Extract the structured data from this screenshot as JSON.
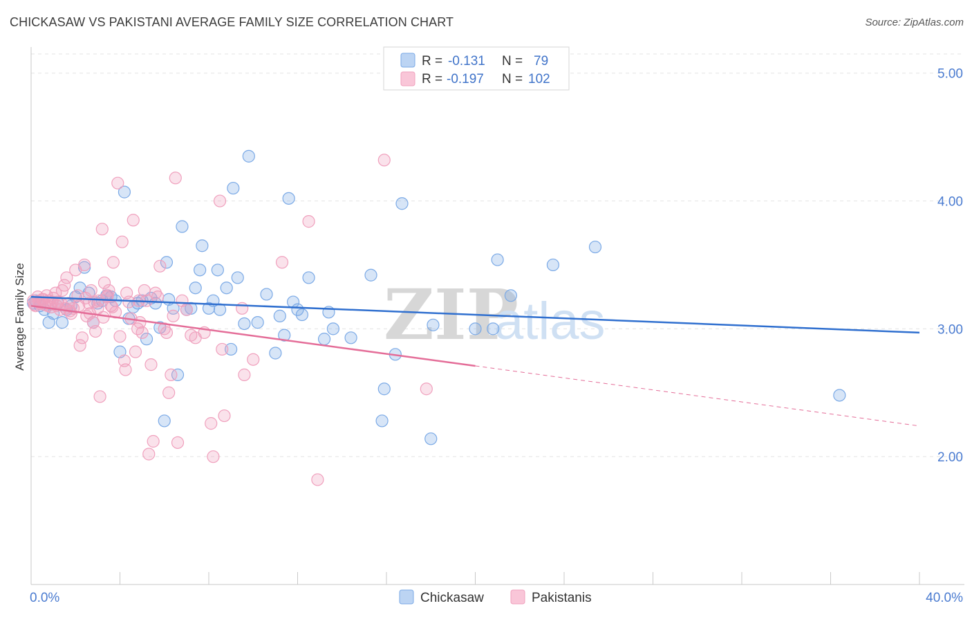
{
  "title": "CHICKASAW VS PAKISTANI AVERAGE FAMILY SIZE CORRELATION CHART",
  "source": "Source: ZipAtlas.com",
  "watermark": {
    "part1": "ZIP",
    "part2": "atlas"
  },
  "legend": {
    "rows": [
      {
        "r_label": "R =",
        "r_value": "-0.131",
        "n_label": "N =",
        "n_value": "79",
        "color": "#7aa9e6"
      },
      {
        "r_label": "R =",
        "r_value": "-0.197",
        "n_label": "N =",
        "n_value": "102",
        "color": "#f0a0bd"
      }
    ]
  },
  "bottom_legend": [
    "Chickasaw",
    "Pakistanis"
  ],
  "chart_data": {
    "type": "scatter",
    "ylabel": "Average Family Size",
    "xlim": [
      0,
      40
    ],
    "ylim": [
      1.0,
      5.15
    ],
    "x_tick_labels": [
      "0.0%",
      "40.0%"
    ],
    "y_ticks": [
      2.0,
      3.0,
      4.0,
      5.0
    ],
    "y_tick_labels": [
      "2.00",
      "3.00",
      "4.00",
      "5.00"
    ],
    "grid": true,
    "series": [
      {
        "name": "Chickasaw",
        "color": "#7aa9e6",
        "line_color": "#2f6fcf",
        "trend": {
          "x0": 0,
          "y0": 3.25,
          "x1": 40,
          "y1": 2.97,
          "dashed_from": 40
        },
        "points": [
          [
            0.2,
            3.22
          ],
          [
            0.4,
            3.18
          ],
          [
            0.6,
            3.15
          ],
          [
            0.8,
            3.05
          ],
          [
            1.0,
            3.12
          ],
          [
            1.2,
            3.2
          ],
          [
            1.4,
            3.05
          ],
          [
            1.6,
            3.15
          ],
          [
            1.8,
            3.18
          ],
          [
            2.0,
            3.25
          ],
          [
            2.2,
            3.32
          ],
          [
            2.4,
            3.48
          ],
          [
            2.6,
            3.28
          ],
          [
            2.8,
            3.05
          ],
          [
            3.0,
            3.2
          ],
          [
            3.2,
            3.22
          ],
          [
            3.4,
            3.26
          ],
          [
            3.6,
            3.25
          ],
          [
            3.8,
            3.22
          ],
          [
            4.0,
            2.82
          ],
          [
            4.2,
            4.07
          ],
          [
            4.4,
            3.08
          ],
          [
            4.6,
            3.17
          ],
          [
            4.8,
            3.2
          ],
          [
            5.0,
            3.22
          ],
          [
            5.2,
            2.92
          ],
          [
            5.4,
            3.24
          ],
          [
            5.6,
            3.2
          ],
          [
            5.8,
            3.01
          ],
          [
            6.0,
            2.28
          ],
          [
            6.1,
            3.52
          ],
          [
            6.2,
            3.23
          ],
          [
            6.4,
            3.16
          ],
          [
            6.6,
            2.64
          ],
          [
            6.8,
            3.8
          ],
          [
            7.0,
            3.15
          ],
          [
            7.2,
            3.16
          ],
          [
            7.4,
            3.32
          ],
          [
            7.6,
            3.46
          ],
          [
            7.7,
            3.65
          ],
          [
            8.0,
            3.16
          ],
          [
            8.2,
            3.22
          ],
          [
            8.4,
            3.46
          ],
          [
            8.5,
            3.15
          ],
          [
            8.8,
            3.32
          ],
          [
            9.0,
            2.84
          ],
          [
            9.1,
            4.1
          ],
          [
            9.3,
            3.4
          ],
          [
            9.6,
            3.04
          ],
          [
            9.8,
            4.35
          ],
          [
            10.2,
            3.05
          ],
          [
            10.6,
            3.27
          ],
          [
            11.0,
            2.81
          ],
          [
            11.2,
            3.1
          ],
          [
            11.4,
            2.95
          ],
          [
            11.6,
            4.02
          ],
          [
            11.8,
            3.21
          ],
          [
            12.0,
            3.15
          ],
          [
            12.2,
            3.11
          ],
          [
            12.5,
            3.4
          ],
          [
            13.2,
            2.92
          ],
          [
            13.4,
            3.13
          ],
          [
            13.6,
            3.0
          ],
          [
            14.4,
            2.93
          ],
          [
            15.3,
            3.42
          ],
          [
            15.8,
            2.28
          ],
          [
            15.9,
            2.53
          ],
          [
            16.4,
            2.8
          ],
          [
            16.7,
            3.98
          ],
          [
            18.0,
            2.14
          ],
          [
            18.1,
            3.03
          ],
          [
            20.0,
            3.0
          ],
          [
            20.8,
            3.0
          ],
          [
            21.0,
            3.54
          ],
          [
            21.6,
            3.26
          ],
          [
            23.5,
            3.5
          ],
          [
            25.4,
            3.64
          ],
          [
            36.4,
            2.48
          ],
          [
            0.1,
            3.2
          ]
        ]
      },
      {
        "name": "Pakistanis",
        "color": "#f0a0bd",
        "line_color": "#e46d98",
        "trend": {
          "x0": 0,
          "y0": 3.18,
          "x1": 40,
          "y1": 2.24,
          "dashed_from": 20
        },
        "points": [
          [
            0.1,
            3.22
          ],
          [
            0.2,
            3.18
          ],
          [
            0.3,
            3.25
          ],
          [
            0.4,
            3.2
          ],
          [
            0.5,
            3.23
          ],
          [
            0.6,
            3.19
          ],
          [
            0.7,
            3.26
          ],
          [
            0.8,
            3.22
          ],
          [
            0.9,
            3.17
          ],
          [
            1.0,
            3.24
          ],
          [
            1.1,
            3.28
          ],
          [
            1.2,
            3.21
          ],
          [
            1.3,
            3.15
          ],
          [
            1.4,
            3.3
          ],
          [
            1.5,
            3.34
          ],
          [
            1.6,
            3.4
          ],
          [
            1.7,
            3.2
          ],
          [
            1.8,
            3.12
          ],
          [
            1.9,
            3.16
          ],
          [
            2.0,
            3.46
          ],
          [
            2.1,
            3.26
          ],
          [
            2.2,
            2.87
          ],
          [
            2.3,
            2.93
          ],
          [
            2.4,
            3.5
          ],
          [
            2.5,
            3.1
          ],
          [
            2.6,
            3.2
          ],
          [
            2.7,
            3.3
          ],
          [
            2.8,
            3.05
          ],
          [
            2.9,
            2.98
          ],
          [
            3.0,
            3.16
          ],
          [
            3.1,
            2.47
          ],
          [
            3.2,
            3.78
          ],
          [
            3.3,
            3.36
          ],
          [
            3.4,
            3.25
          ],
          [
            3.5,
            3.3
          ],
          [
            3.6,
            3.18
          ],
          [
            3.7,
            3.52
          ],
          [
            3.8,
            3.13
          ],
          [
            3.9,
            4.14
          ],
          [
            4.0,
            2.94
          ],
          [
            4.1,
            3.68
          ],
          [
            4.2,
            2.75
          ],
          [
            4.3,
            3.28
          ],
          [
            4.4,
            3.21
          ],
          [
            4.5,
            3.08
          ],
          [
            4.6,
            3.85
          ],
          [
            4.7,
            2.82
          ],
          [
            4.8,
            3.0
          ],
          [
            4.9,
            3.05
          ],
          [
            5.0,
            2.97
          ],
          [
            5.1,
            3.3
          ],
          [
            5.2,
            3.22
          ],
          [
            5.3,
            2.02
          ],
          [
            5.4,
            2.72
          ],
          [
            5.5,
            2.12
          ],
          [
            5.6,
            3.28
          ],
          [
            5.7,
            3.25
          ],
          [
            5.8,
            3.49
          ],
          [
            6.0,
            3.0
          ],
          [
            6.1,
            2.97
          ],
          [
            6.2,
            2.5
          ],
          [
            6.3,
            2.64
          ],
          [
            6.4,
            3.1
          ],
          [
            6.5,
            4.18
          ],
          [
            6.6,
            2.11
          ],
          [
            6.8,
            3.22
          ],
          [
            7.0,
            3.15
          ],
          [
            7.2,
            2.95
          ],
          [
            7.4,
            2.93
          ],
          [
            7.8,
            2.97
          ],
          [
            8.1,
            2.26
          ],
          [
            8.2,
            2.0
          ],
          [
            8.5,
            4.0
          ],
          [
            8.6,
            2.84
          ],
          [
            8.7,
            2.32
          ],
          [
            9.5,
            3.16
          ],
          [
            9.6,
            2.64
          ],
          [
            10.0,
            2.76
          ],
          [
            11.3,
            3.52
          ],
          [
            12.5,
            3.84
          ],
          [
            12.9,
            1.82
          ],
          [
            15.9,
            4.32
          ],
          [
            17.8,
            2.53
          ],
          [
            0.15,
            3.19
          ],
          [
            0.35,
            3.21
          ],
          [
            0.55,
            3.23
          ],
          [
            0.75,
            3.18
          ],
          [
            0.95,
            3.21
          ],
          [
            1.15,
            3.18
          ],
          [
            1.35,
            3.2
          ],
          [
            1.55,
            3.16
          ],
          [
            1.75,
            3.14
          ],
          [
            2.15,
            3.18
          ],
          [
            2.45,
            3.24
          ],
          [
            2.65,
            3.12
          ],
          [
            2.85,
            3.21
          ],
          [
            3.05,
            3.22
          ],
          [
            3.25,
            3.09
          ],
          [
            3.45,
            3.26
          ],
          [
            3.65,
            3.17
          ],
          [
            4.25,
            2.68
          ],
          [
            4.85,
            3.22
          ]
        ]
      }
    ]
  }
}
